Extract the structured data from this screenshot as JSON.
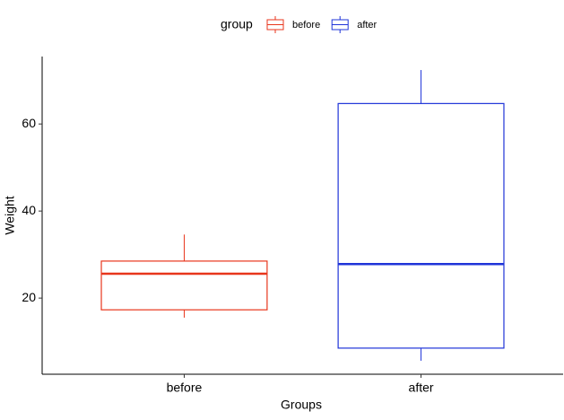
{
  "chart_data": {
    "type": "box",
    "x_label": "Groups",
    "y_label": "Weight",
    "legend_title": "group",
    "legend_position": "top",
    "categories": [
      "before",
      "after"
    ],
    "series": [
      {
        "name": "before",
        "color": "#e8361c",
        "values": [
          15.5,
          17.3,
          25.6,
          28.5,
          34.6
        ]
      },
      {
        "name": "after",
        "color": "#1f34d8",
        "values": [
          5.6,
          8.5,
          27.8,
          64.7,
          72.4
        ]
      }
    ],
    "ylim": [
      2.5,
      75.5
    ],
    "yticks": [
      20,
      40,
      60
    ],
    "grid": false
  }
}
